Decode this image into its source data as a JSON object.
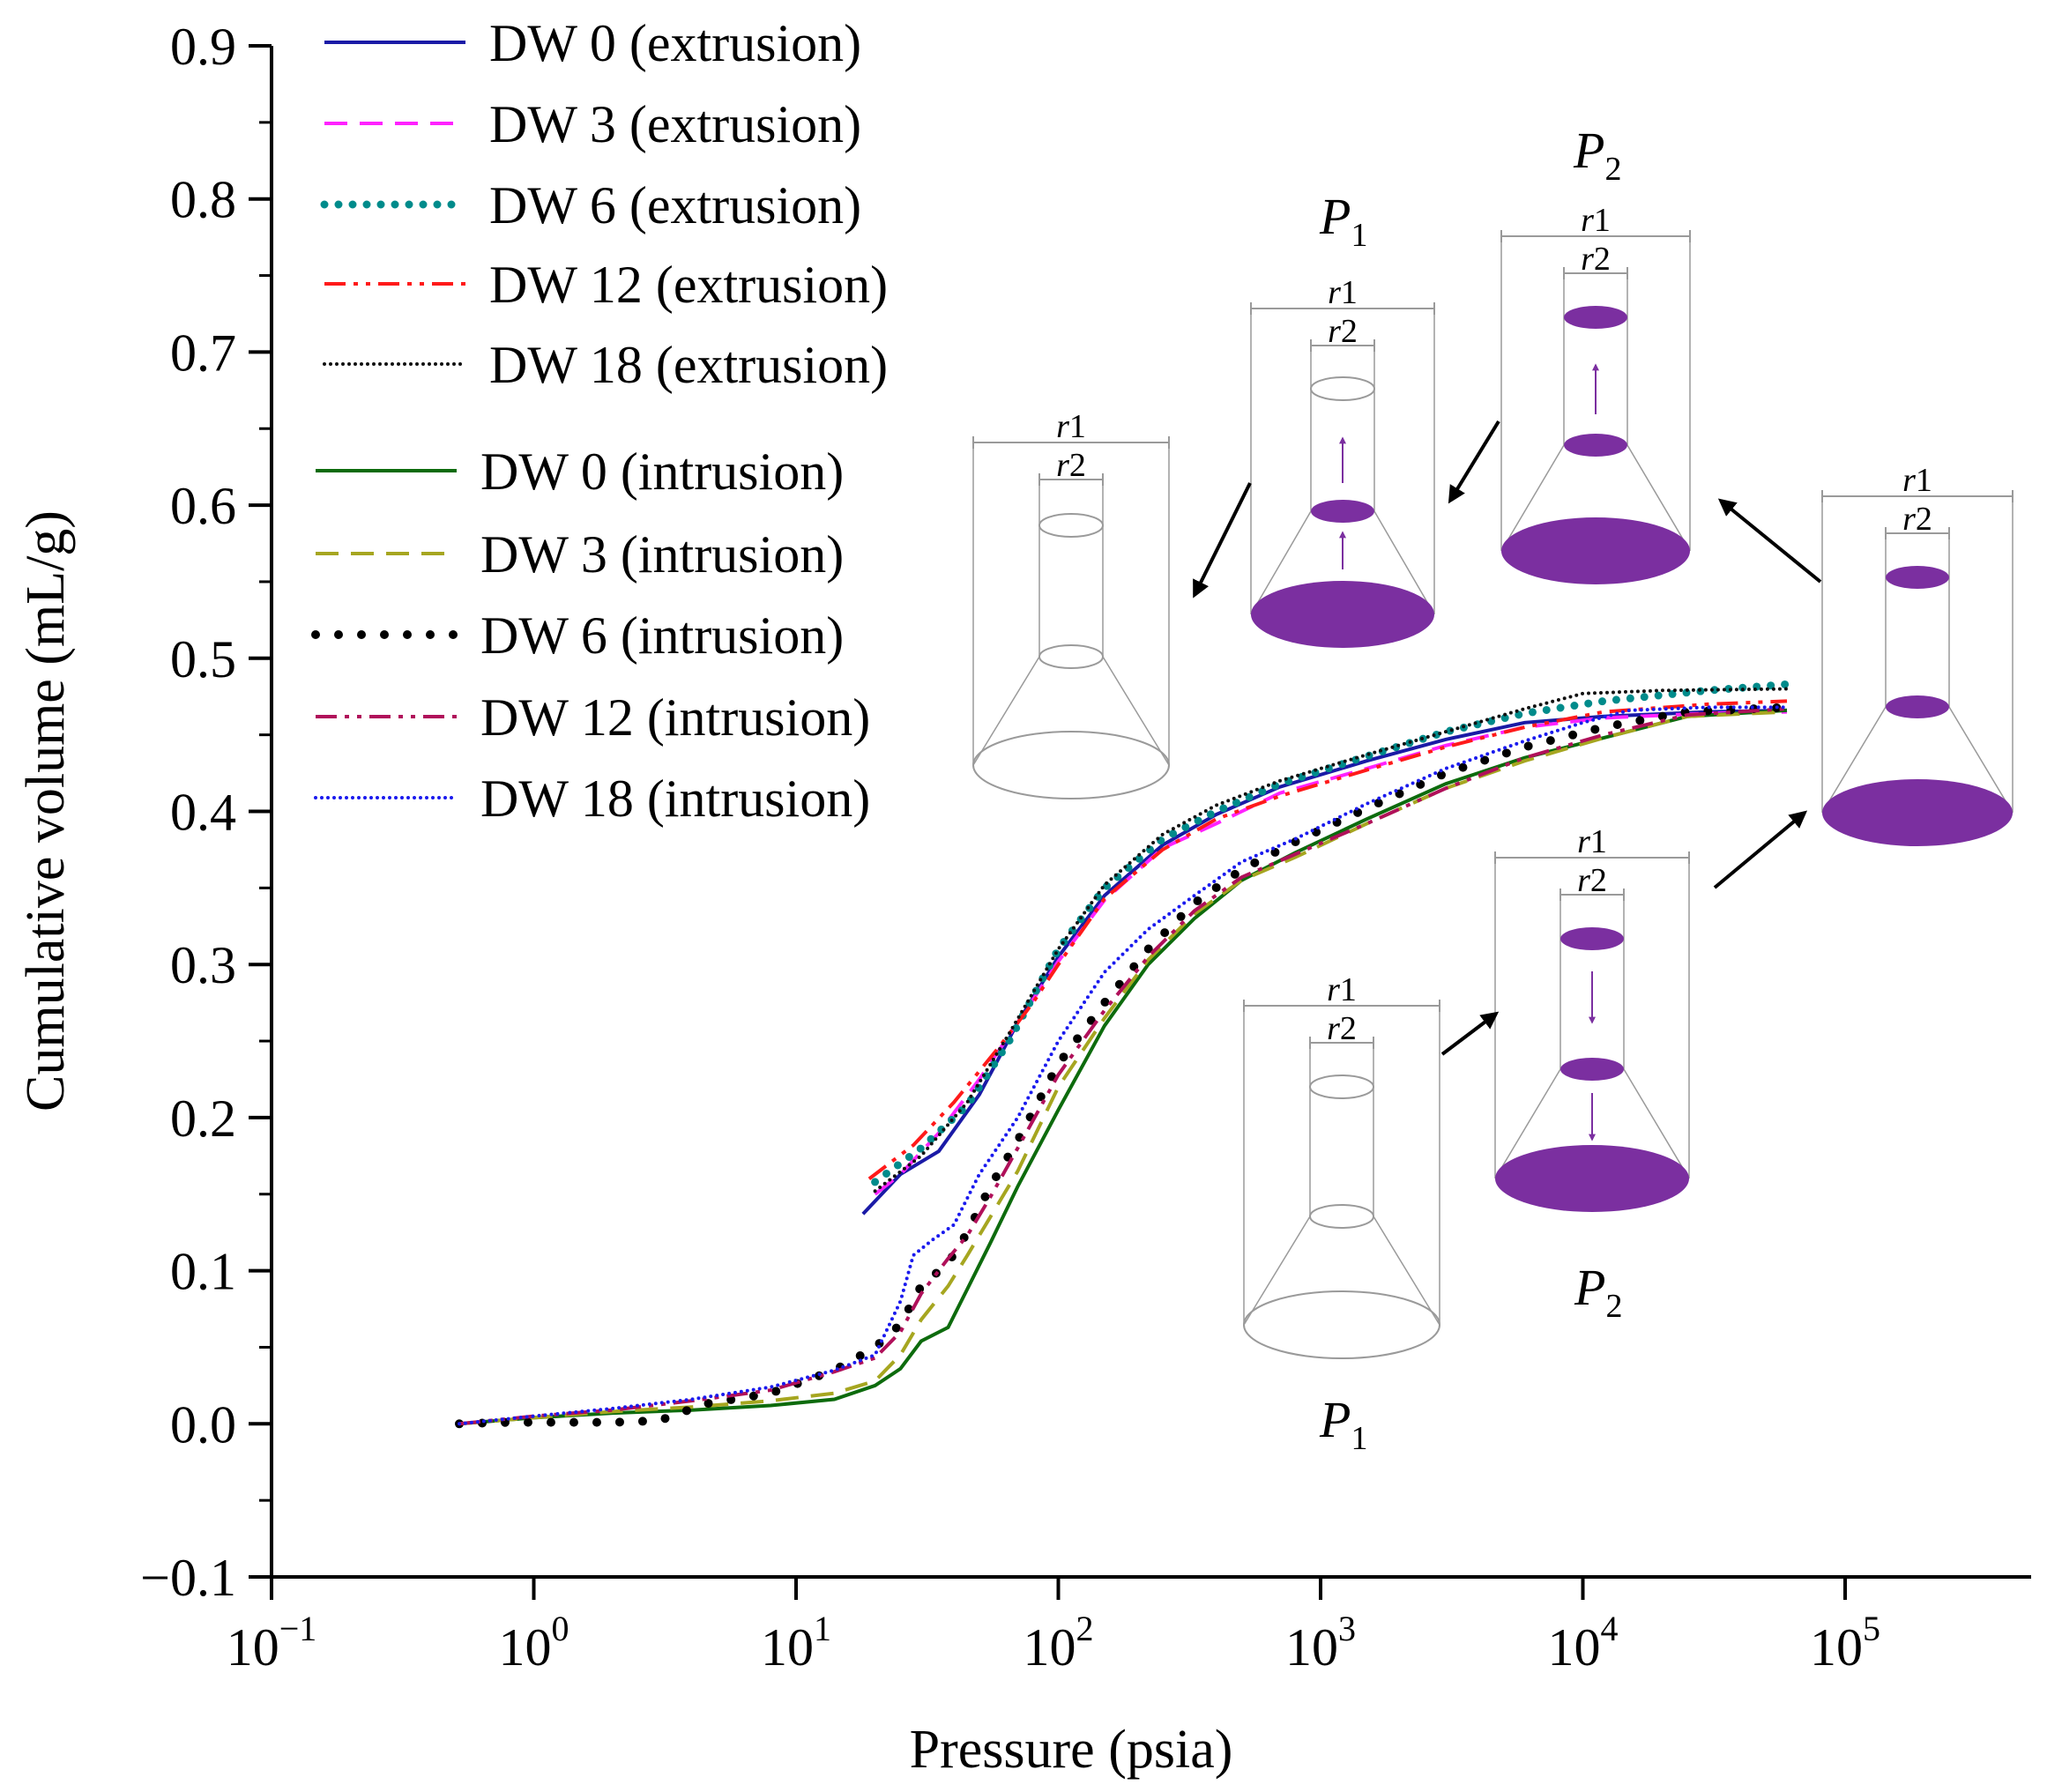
{
  "chart_data": {
    "type": "line",
    "xlabel": "Pressure (psia)",
    "ylabel": "Cumulative volume (mL/g)",
    "xscale": "log",
    "xlim": [
      0.1,
      600000
    ],
    "ylim": [
      -0.1,
      0.9
    ],
    "x_ticks": [
      {
        "value": 0.1,
        "base": "10",
        "exp": "−1"
      },
      {
        "value": 1,
        "base": "10",
        "exp": "0"
      },
      {
        "value": 10,
        "base": "10",
        "exp": "1"
      },
      {
        "value": 100,
        "base": "10",
        "exp": "2"
      },
      {
        "value": 1000,
        "base": "10",
        "exp": "3"
      },
      {
        "value": 10000,
        "base": "10",
        "exp": "4"
      },
      {
        "value": 100000,
        "base": "10",
        "exp": "5"
      }
    ],
    "y_ticks": [
      "−0.1",
      "0.0",
      "0.1",
      "0.2",
      "0.3",
      "0.4",
      "0.5",
      "0.6",
      "0.7",
      "0.8",
      "0.9"
    ],
    "legend_position": "top-left",
    "grid": false,
    "series": [
      {
        "name": "DW 0 (extrusion)",
        "color": "#1a1aa6",
        "dash": "solid",
        "points": [
          [
            18,
            0.137
          ],
          [
            25,
            0.163
          ],
          [
            35,
            0.178
          ],
          [
            50,
            0.215
          ],
          [
            70,
            0.262
          ],
          [
            100,
            0.305
          ],
          [
            150,
            0.345
          ],
          [
            250,
            0.378
          ],
          [
            400,
            0.398
          ],
          [
            700,
            0.416
          ],
          [
            1500,
            0.433
          ],
          [
            3000,
            0.447
          ],
          [
            6000,
            0.458
          ],
          [
            12000,
            0.462
          ],
          [
            30000,
            0.465
          ],
          [
            60000,
            0.466
          ]
        ]
      },
      {
        "name": "DW 3 (extrusion)",
        "color": "#ff22ff",
        "dash": "dash",
        "points": [
          [
            20,
            0.15
          ],
          [
            25,
            0.163
          ],
          [
            35,
            0.19
          ],
          [
            50,
            0.225
          ],
          [
            70,
            0.262
          ],
          [
            100,
            0.302
          ],
          [
            150,
            0.342
          ],
          [
            250,
            0.376
          ],
          [
            400,
            0.392
          ],
          [
            700,
            0.412
          ],
          [
            1500,
            0.428
          ],
          [
            3000,
            0.443
          ],
          [
            6000,
            0.455
          ],
          [
            12000,
            0.461
          ],
          [
            30000,
            0.464
          ],
          [
            60000,
            0.465
          ]
        ]
      },
      {
        "name": "DW 6 (extrusion)",
        "color": "#008b8b",
        "dash": "dot",
        "points": [
          [
            20,
            0.158
          ],
          [
            30,
            0.18
          ],
          [
            45,
            0.208
          ],
          [
            65,
            0.25
          ],
          [
            100,
            0.31
          ],
          [
            150,
            0.35
          ],
          [
            250,
            0.382
          ],
          [
            400,
            0.4
          ],
          [
            700,
            0.418
          ],
          [
            1500,
            0.436
          ],
          [
            3000,
            0.452
          ],
          [
            6000,
            0.464
          ],
          [
            12000,
            0.472
          ],
          [
            30000,
            0.479
          ],
          [
            60000,
            0.483
          ]
        ]
      },
      {
        "name": "DW 12 (extrusion)",
        "color": "#ff1a1a",
        "dash": "dashdotdot",
        "points": [
          [
            19,
            0.16
          ],
          [
            28,
            0.182
          ],
          [
            40,
            0.21
          ],
          [
            60,
            0.247
          ],
          [
            80,
            0.275
          ],
          [
            100,
            0.3
          ],
          [
            150,
            0.343
          ],
          [
            250,
            0.375
          ],
          [
            400,
            0.395
          ],
          [
            700,
            0.41
          ],
          [
            1500,
            0.427
          ],
          [
            3000,
            0.442
          ],
          [
            6000,
            0.455
          ],
          [
            12000,
            0.465
          ],
          [
            30000,
            0.47
          ],
          [
            60000,
            0.472
          ]
        ]
      },
      {
        "name": "DW 18 (extrusion)",
        "color": "#111111",
        "dash": "finedot",
        "points": [
          [
            20,
            0.152
          ],
          [
            30,
            0.175
          ],
          [
            45,
            0.21
          ],
          [
            65,
            0.255
          ],
          [
            100,
            0.31
          ],
          [
            150,
            0.352
          ],
          [
            250,
            0.385
          ],
          [
            400,
            0.404
          ],
          [
            700,
            0.42
          ],
          [
            1500,
            0.437
          ],
          [
            3000,
            0.452
          ],
          [
            6000,
            0.467
          ],
          [
            10000,
            0.477
          ],
          [
            20000,
            0.479
          ],
          [
            60000,
            0.48
          ]
        ]
      },
      {
        "name": "DW 0 (intrusion)",
        "color": "#0d6b0d",
        "dash": "solid",
        "points": [
          [
            0.52,
            0.0
          ],
          [
            1,
            0.004
          ],
          [
            2,
            0.007
          ],
          [
            4,
            0.009
          ],
          [
            8,
            0.012
          ],
          [
            14,
            0.016
          ],
          [
            20,
            0.025
          ],
          [
            25,
            0.036
          ],
          [
            30,
            0.054
          ],
          [
            38,
            0.063
          ],
          [
            45,
            0.088
          ],
          [
            55,
            0.118
          ],
          [
            70,
            0.155
          ],
          [
            100,
            0.205
          ],
          [
            150,
            0.26
          ],
          [
            220,
            0.3
          ],
          [
            330,
            0.33
          ],
          [
            500,
            0.355
          ],
          [
            800,
            0.373
          ],
          [
            1500,
            0.395
          ],
          [
            3000,
            0.418
          ],
          [
            6000,
            0.435
          ],
          [
            12000,
            0.448
          ],
          [
            25000,
            0.462
          ],
          [
            60000,
            0.466
          ]
        ]
      },
      {
        "name": "DW 3 (intrusion)",
        "color": "#a6a620",
        "dash": "dash",
        "points": [
          [
            0.52,
            0.0
          ],
          [
            1,
            0.004
          ],
          [
            2,
            0.008
          ],
          [
            4,
            0.011
          ],
          [
            8,
            0.015
          ],
          [
            14,
            0.02
          ],
          [
            20,
            0.028
          ],
          [
            25,
            0.045
          ],
          [
            30,
            0.068
          ],
          [
            38,
            0.09
          ],
          [
            45,
            0.11
          ],
          [
            55,
            0.135
          ],
          [
            70,
            0.165
          ],
          [
            100,
            0.22
          ],
          [
            150,
            0.265
          ],
          [
            220,
            0.303
          ],
          [
            330,
            0.333
          ],
          [
            500,
            0.355
          ],
          [
            800,
            0.37
          ],
          [
            1500,
            0.392
          ],
          [
            3000,
            0.415
          ],
          [
            6000,
            0.433
          ],
          [
            12000,
            0.448
          ],
          [
            25000,
            0.462
          ],
          [
            60000,
            0.465
          ]
        ]
      },
      {
        "name": "DW 6 (intrusion)",
        "color": "#000000",
        "dash": "bigdot",
        "points": [
          [
            0.52,
            0.0
          ],
          [
            0.8,
            0.001
          ],
          [
            1.2,
            0.001
          ],
          [
            2,
            0.001
          ],
          [
            3,
            0.002
          ],
          [
            4.5,
            0.013
          ],
          [
            8,
            0.02
          ],
          [
            14,
            0.035
          ],
          [
            20,
            0.05
          ],
          [
            25,
            0.065
          ],
          [
            30,
            0.09
          ],
          [
            38,
            0.105
          ],
          [
            45,
            0.125
          ],
          [
            55,
            0.155
          ],
          [
            70,
            0.185
          ],
          [
            100,
            0.235
          ],
          [
            150,
            0.275
          ],
          [
            220,
            0.31
          ],
          [
            330,
            0.34
          ],
          [
            500,
            0.362
          ],
          [
            800,
            0.38
          ],
          [
            1500,
            0.402
          ],
          [
            3000,
            0.425
          ],
          [
            6000,
            0.442
          ],
          [
            12000,
            0.455
          ],
          [
            25000,
            0.465
          ],
          [
            60000,
            0.468
          ]
        ]
      },
      {
        "name": "DW 12 (intrusion)",
        "color": "#b0105a",
        "dash": "dashdotdot",
        "points": [
          [
            0.52,
            0.0
          ],
          [
            1,
            0.005
          ],
          [
            2,
            0.009
          ],
          [
            4,
            0.015
          ],
          [
            8,
            0.022
          ],
          [
            14,
            0.034
          ],
          [
            20,
            0.043
          ],
          [
            25,
            0.06
          ],
          [
            30,
            0.085
          ],
          [
            38,
            0.108
          ],
          [
            45,
            0.123
          ],
          [
            55,
            0.148
          ],
          [
            70,
            0.18
          ],
          [
            100,
            0.228
          ],
          [
            150,
            0.27
          ],
          [
            220,
            0.305
          ],
          [
            330,
            0.335
          ],
          [
            500,
            0.357
          ],
          [
            800,
            0.372
          ],
          [
            1500,
            0.392
          ],
          [
            3000,
            0.415
          ],
          [
            6000,
            0.435
          ],
          [
            12000,
            0.45
          ],
          [
            25000,
            0.463
          ],
          [
            60000,
            0.467
          ]
        ]
      },
      {
        "name": "DW 18 (intrusion)",
        "color": "#1a1aee",
        "dash": "finedot",
        "points": [
          [
            0.52,
            0.0
          ],
          [
            1,
            0.005
          ],
          [
            2,
            0.01
          ],
          [
            4,
            0.016
          ],
          [
            8,
            0.024
          ],
          [
            14,
            0.035
          ],
          [
            20,
            0.045
          ],
          [
            25,
            0.08
          ],
          [
            28,
            0.11
          ],
          [
            33,
            0.12
          ],
          [
            40,
            0.13
          ],
          [
            50,
            0.163
          ],
          [
            70,
            0.2
          ],
          [
            100,
            0.25
          ],
          [
            150,
            0.295
          ],
          [
            220,
            0.323
          ],
          [
            330,
            0.345
          ],
          [
            500,
            0.367
          ],
          [
            800,
            0.382
          ],
          [
            1500,
            0.405
          ],
          [
            3000,
            0.428
          ],
          [
            6000,
            0.446
          ],
          [
            10000,
            0.458
          ],
          [
            15000,
            0.466
          ],
          [
            30000,
            0.468
          ],
          [
            60000,
            0.468
          ]
        ]
      }
    ]
  },
  "diagram": {
    "p_symbol": "P",
    "sub_1": "1",
    "sub_2": "2",
    "r_base": "r",
    "r1_index": "1",
    "r2_index": "2",
    "fill_color": "#7b2fa0",
    "outline_color": "#9a9a9a"
  }
}
